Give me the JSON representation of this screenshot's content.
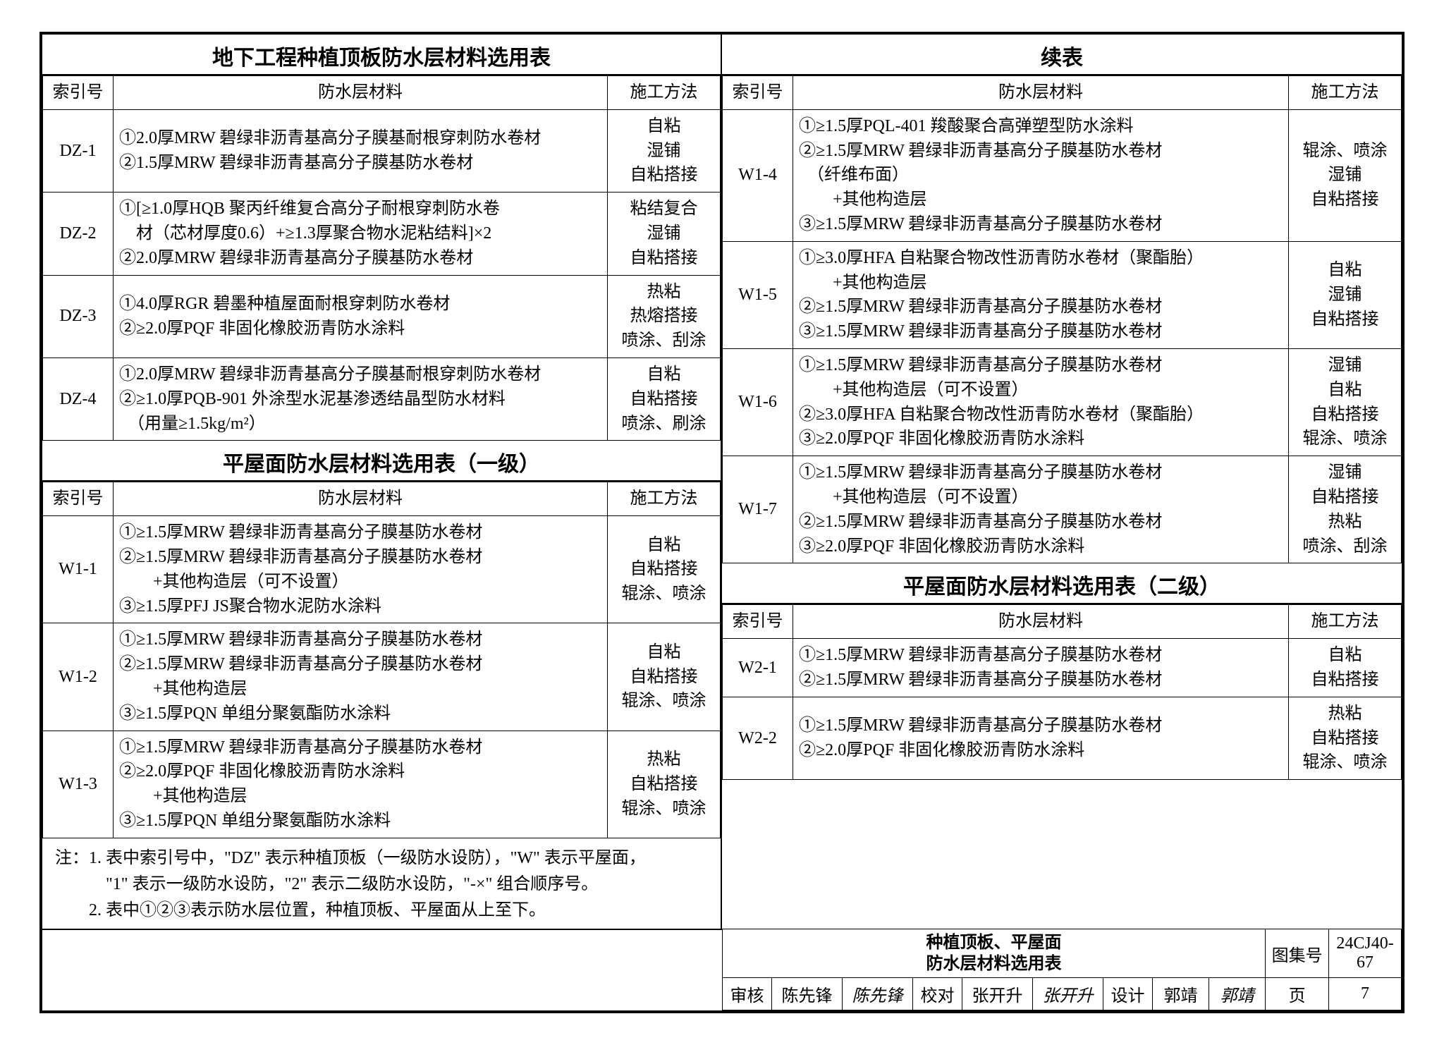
{
  "frame": {
    "border_color": "#000000",
    "bg": "#ffffff"
  },
  "headers": {
    "idx": "索引号",
    "material": "防水层材料",
    "method": "施工方法"
  },
  "sections": {
    "dz": {
      "title": "地下工程种植顶板防水层材料选用表"
    },
    "w1a": {
      "title": "平屋面防水层材料选用表（一级）"
    },
    "cont": {
      "title": "续表"
    },
    "w2": {
      "title": "平屋面防水层材料选用表（二级）"
    }
  },
  "dz_rows": [
    {
      "idx": "DZ-1",
      "mat": [
        "①2.0厚MRW 碧绿非沥青基高分子膜基耐根穿刺防水卷材",
        "②1.5厚MRW 碧绿非沥青基高分子膜基防水卷材"
      ],
      "meth": [
        "自粘",
        "湿铺",
        "自粘搭接"
      ]
    },
    {
      "idx": "DZ-2",
      "mat": [
        "①[≥1.0厚HQB 聚丙纤维复合高分子耐根穿刺防水卷",
        "　材（芯材厚度0.6）+≥1.3厚聚合物水泥粘结料]×2",
        "②2.0厚MRW 碧绿非沥青基高分子膜基防水卷材"
      ],
      "meth": [
        "粘结复合",
        "湿铺",
        "自粘搭接"
      ]
    },
    {
      "idx": "DZ-3",
      "mat": [
        "①4.0厚RGR 碧墨种植屋面耐根穿刺防水卷材",
        "②≥2.0厚PQF 非固化橡胶沥青防水涂料"
      ],
      "meth": [
        "热粘",
        "热熔搭接",
        "喷涂、刮涂"
      ]
    },
    {
      "idx": "DZ-4",
      "mat": [
        "①2.0厚MRW 碧绿非沥青基高分子膜基耐根穿刺防水卷材",
        "②≥1.0厚PQB-901 外涂型水泥基渗透结晶型防水材料",
        "　（用量≥1.5kg/m²）"
      ],
      "meth": [
        "自粘",
        "自粘搭接",
        "喷涂、刷涂"
      ]
    }
  ],
  "w1a_rows": [
    {
      "idx": "W1-1",
      "mat": [
        "①≥1.5厚MRW 碧绿非沥青基高分子膜基防水卷材",
        "②≥1.5厚MRW 碧绿非沥青基高分子膜基防水卷材",
        "　　+其他构造层（可不设置）",
        "③≥1.5厚PFJ JS聚合物水泥防水涂料"
      ],
      "meth": [
        "自粘",
        "自粘搭接",
        "辊涂、喷涂"
      ]
    },
    {
      "idx": "W1-2",
      "mat": [
        "①≥1.5厚MRW 碧绿非沥青基高分子膜基防水卷材",
        "②≥1.5厚MRW 碧绿非沥青基高分子膜基防水卷材",
        "　　+其他构造层",
        "③≥1.5厚PQN 单组分聚氨酯防水涂料"
      ],
      "meth": [
        "自粘",
        "自粘搭接",
        "辊涂、喷涂"
      ]
    },
    {
      "idx": "W1-3",
      "mat": [
        "①≥1.5厚MRW 碧绿非沥青基高分子膜基防水卷材",
        "②≥2.0厚PQF 非固化橡胶沥青防水涂料",
        "　　+其他构造层",
        "③≥1.5厚PQN 单组分聚氨酯防水涂料"
      ],
      "meth": [
        "热粘",
        "自粘搭接",
        "辊涂、喷涂"
      ]
    }
  ],
  "cont_rows": [
    {
      "idx": "W1-4",
      "mat": [
        "①≥1.5厚PQL-401 羧酸聚合高弹塑型防水涂料",
        "②≥1.5厚MRW 碧绿非沥青基高分子膜基防水卷材",
        "　（纤维布面）",
        "　　+其他构造层",
        "③≥1.5厚MRW 碧绿非沥青基高分子膜基防水卷材"
      ],
      "meth": [
        "辊涂、喷涂",
        "湿铺",
        "自粘搭接"
      ]
    },
    {
      "idx": "W1-5",
      "mat": [
        "①≥3.0厚HFA 自粘聚合物改性沥青防水卷材（聚酯胎）",
        "　　+其他构造层",
        "②≥1.5厚MRW 碧绿非沥青基高分子膜基防水卷材",
        "③≥1.5厚MRW 碧绿非沥青基高分子膜基防水卷材"
      ],
      "meth": [
        "自粘",
        "湿铺",
        "自粘搭接"
      ]
    },
    {
      "idx": "W1-6",
      "mat": [
        "①≥1.5厚MRW 碧绿非沥青基高分子膜基防水卷材",
        "　　+其他构造层（可不设置）",
        "②≥3.0厚HFA 自粘聚合物改性沥青防水卷材（聚酯胎）",
        "③≥2.0厚PQF 非固化橡胶沥青防水涂料"
      ],
      "meth": [
        "湿铺",
        "自粘",
        "自粘搭接",
        "辊涂、喷涂"
      ]
    },
    {
      "idx": "W1-7",
      "mat": [
        "①≥1.5厚MRW 碧绿非沥青基高分子膜基防水卷材",
        "　　+其他构造层（可不设置）",
        "②≥1.5厚MRW 碧绿非沥青基高分子膜基防水卷材",
        "③≥2.0厚PQF 非固化橡胶沥青防水涂料"
      ],
      "meth": [
        "湿铺",
        "自粘搭接",
        "热粘",
        "喷涂、刮涂"
      ]
    }
  ],
  "w2_rows": [
    {
      "idx": "W2-1",
      "mat": [
        "①≥1.5厚MRW 碧绿非沥青基高分子膜基防水卷材",
        "②≥1.5厚MRW 碧绿非沥青基高分子膜基防水卷材"
      ],
      "meth": [
        "自粘",
        "自粘搭接"
      ]
    },
    {
      "idx": "W2-2",
      "mat": [
        "①≥1.5厚MRW 碧绿非沥青基高分子膜基防水卷材",
        "②≥2.0厚PQF 非固化橡胶沥青防水涂料"
      ],
      "meth": [
        "热粘",
        "自粘搭接",
        "辊涂、喷涂"
      ]
    }
  ],
  "notes": [
    "注：1. 表中索引号中，\"DZ\" 表示种植顶板（一级防水设防），\"W\" 表示平屋面，",
    "　　　\"1\" 表示一级防水设防，\"2\" 表示二级防水设防，\"-×\" 组合顺序号。",
    "　　2. 表中①②③表示防水层位置，种植顶板、平屋面从上至下。"
  ],
  "titleblock": {
    "title_l1": "种植顶板、平屋面",
    "title_l2": "防水层材料选用表",
    "atlas_label": "图集号",
    "atlas_no": "24CJ40-67",
    "review_label": "审核",
    "review_name": "陈先锋",
    "review_sig": "陈先锋",
    "check_label": "校对",
    "check_name": "张开升",
    "check_sig": "张开升",
    "design_label": "设计",
    "design_name": "郭靖",
    "design_sig": "郭靖",
    "page_label": "页",
    "page_no": "7"
  }
}
